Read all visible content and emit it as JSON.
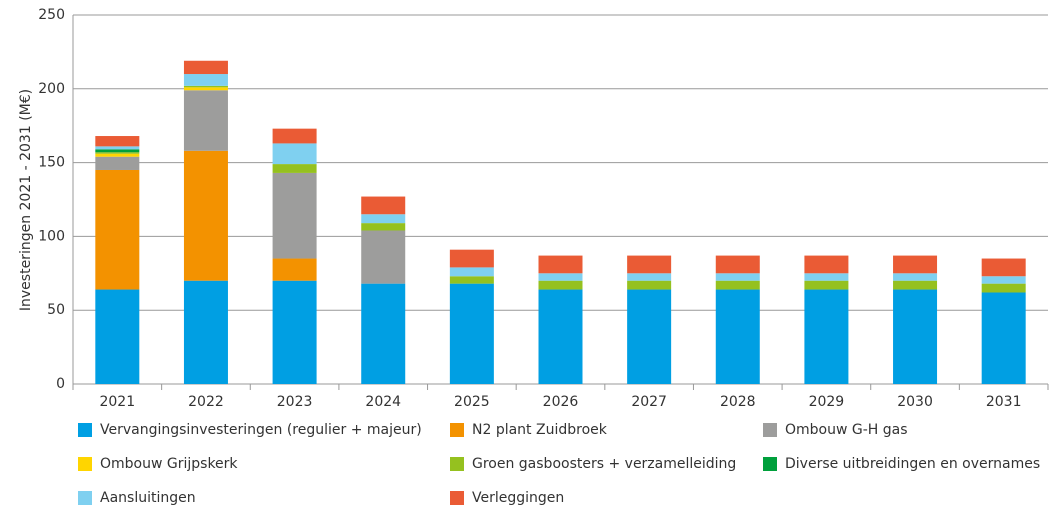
{
  "chart_data": {
    "type": "stacked_bar",
    "y_label": "Investeringen 2021 - 2031 (M€)",
    "categories": [
      "2021",
      "2022",
      "2023",
      "2024",
      "2025",
      "2026",
      "2027",
      "2028",
      "2029",
      "2030",
      "2031"
    ],
    "ylim": [
      0,
      250
    ],
    "yticks": [
      0,
      50,
      100,
      150,
      200,
      250
    ],
    "grid": true,
    "series": [
      {
        "name": "Vervangingsinvesteringen (regulier + majeur)",
        "color": "#009fe3",
        "values": [
          64,
          70,
          70,
          68,
          68,
          64,
          64,
          64,
          64,
          64,
          62
        ]
      },
      {
        "name": "N2 plant Zuidbroek",
        "color": "#f39200",
        "values": [
          81,
          88,
          15,
          0,
          0,
          0,
          0,
          0,
          0,
          0,
          0
        ]
      },
      {
        "name": "Ombouw G-H gas",
        "color": "#9d9d9c",
        "values": [
          9,
          41,
          58,
          36,
          0,
          0,
          0,
          0,
          0,
          0,
          0
        ]
      },
      {
        "name": "Ombouw Grijpskerk",
        "color": "#ffd500",
        "values": [
          2,
          2,
          0,
          0,
          0,
          0,
          0,
          0,
          0,
          0,
          0
        ]
      },
      {
        "name": "Groen gasboosters + verzamelleiding",
        "color": "#95c11f",
        "values": [
          1,
          1,
          6,
          5,
          5,
          6,
          6,
          6,
          6,
          6,
          6
        ]
      },
      {
        "name": "Diverse uitbreidingen en overnames",
        "color": "#00a03c",
        "values": [
          2,
          0,
          0,
          0,
          0,
          0,
          0,
          0,
          0,
          0,
          0
        ]
      },
      {
        "name": "Aansluitingen",
        "color": "#7fd0f0",
        "values": [
          2,
          8,
          14,
          6,
          6,
          5,
          5,
          5,
          5,
          5,
          5
        ]
      },
      {
        "name": "Verleggingen",
        "color": "#ea5b35",
        "values": [
          7,
          9,
          10,
          12,
          12,
          12,
          12,
          12,
          12,
          12,
          12
        ]
      }
    ]
  }
}
